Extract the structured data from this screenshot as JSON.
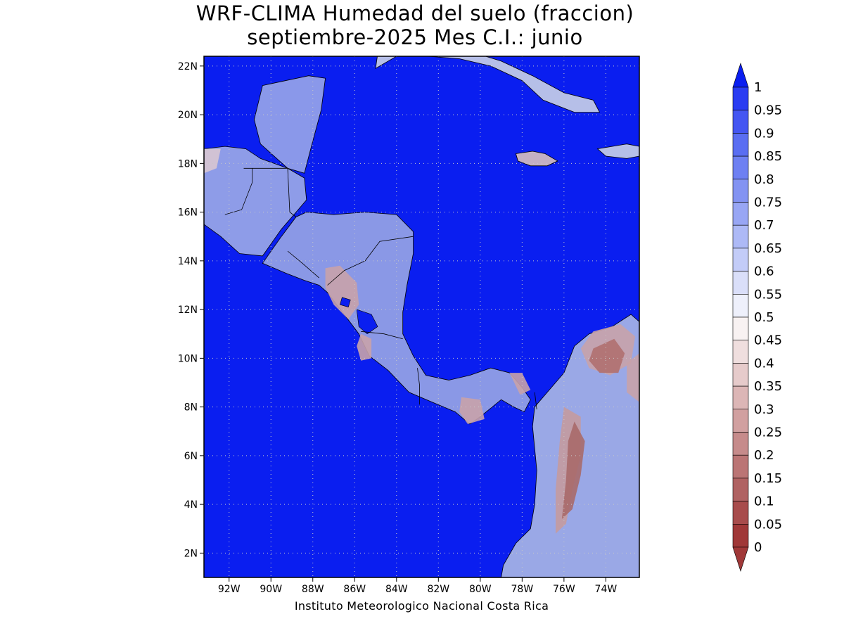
{
  "title": {
    "line1": "WRF-CLIMA Humedad del suelo (fraccion)",
    "line2": "septiembre-2025 Mes C.I.: junio"
  },
  "credit": "Instituto Meteorologico Nacional Costa Rica",
  "map": {
    "lat_range": [
      1,
      22.4
    ],
    "lon_range": [
      -93.2,
      -72.4
    ],
    "ocean_color": "#0a1ef0",
    "y_ticks": [
      {
        "value": 22,
        "label": "22N"
      },
      {
        "value": 20,
        "label": "20N"
      },
      {
        "value": 18,
        "label": "18N"
      },
      {
        "value": 16,
        "label": "16N"
      },
      {
        "value": 14,
        "label": "14N"
      },
      {
        "value": 12,
        "label": "12N"
      },
      {
        "value": 10,
        "label": "10N"
      },
      {
        "value": 8,
        "label": "8N"
      },
      {
        "value": 6,
        "label": "6N"
      },
      {
        "value": 4,
        "label": "4N"
      },
      {
        "value": 2,
        "label": "2N"
      }
    ],
    "x_ticks": [
      {
        "value": -92,
        "label": "92W"
      },
      {
        "value": -90,
        "label": "90W"
      },
      {
        "value": -88,
        "label": "88W"
      },
      {
        "value": -86,
        "label": "86W"
      },
      {
        "value": -84,
        "label": "84W"
      },
      {
        "value": -82,
        "label": "82W"
      },
      {
        "value": -80,
        "label": "80W"
      },
      {
        "value": -78,
        "label": "78W"
      },
      {
        "value": -76,
        "label": "76W"
      },
      {
        "value": -74,
        "label": "74W"
      }
    ],
    "regions": [
      {
        "name": "yucatan",
        "color": "#8a98ea",
        "points": [
          [
            -90.4,
            21.2
          ],
          [
            -88.2,
            21.6
          ],
          [
            -87.4,
            21.5
          ],
          [
            -87.6,
            20.2
          ],
          [
            -88.1,
            18.6
          ],
          [
            -88.4,
            17.6
          ],
          [
            -89.2,
            17.8
          ],
          [
            -90.5,
            18.8
          ],
          [
            -90.8,
            19.8
          ]
        ]
      },
      {
        "name": "mexico-sw",
        "color": "#8e9ce8",
        "points": [
          [
            -93.2,
            18.6
          ],
          [
            -92.2,
            18.7
          ],
          [
            -91.2,
            18.6
          ],
          [
            -90.5,
            18.2
          ],
          [
            -89.2,
            17.8
          ],
          [
            -88.4,
            17.4
          ],
          [
            -88.3,
            16.5
          ],
          [
            -88.9,
            15.9
          ],
          [
            -89.5,
            15.3
          ],
          [
            -90.4,
            14.2
          ],
          [
            -91.5,
            14.3
          ],
          [
            -92.4,
            15.0
          ],
          [
            -93.2,
            15.5
          ]
        ]
      },
      {
        "name": "central-america",
        "color": "#8a98e6",
        "points": [
          [
            -88.3,
            16.0
          ],
          [
            -87.0,
            15.9
          ],
          [
            -85.5,
            16.0
          ],
          [
            -84.0,
            15.9
          ],
          [
            -83.2,
            15.2
          ],
          [
            -83.2,
            14.3
          ],
          [
            -83.5,
            13.0
          ],
          [
            -83.7,
            11.9
          ],
          [
            -83.7,
            11.0
          ],
          [
            -83.2,
            10.1
          ],
          [
            -82.6,
            9.3
          ],
          [
            -81.5,
            9.1
          ],
          [
            -80.5,
            9.3
          ],
          [
            -79.5,
            9.6
          ],
          [
            -78.6,
            9.4
          ],
          [
            -78.0,
            8.8
          ],
          [
            -77.6,
            8.3
          ],
          [
            -77.9,
            7.8
          ],
          [
            -78.4,
            8.0
          ],
          [
            -79.0,
            8.3
          ],
          [
            -80.0,
            7.6
          ],
          [
            -80.5,
            7.3
          ],
          [
            -81.2,
            7.8
          ],
          [
            -82.3,
            8.2
          ],
          [
            -83.4,
            8.6
          ],
          [
            -84.4,
            9.5
          ],
          [
            -85.3,
            10.1
          ],
          [
            -85.8,
            11.0
          ],
          [
            -86.5,
            11.8
          ],
          [
            -87.3,
            12.7
          ],
          [
            -87.7,
            13.0
          ],
          [
            -88.4,
            13.2
          ],
          [
            -89.3,
            13.5
          ],
          [
            -90.4,
            13.9
          ],
          [
            -89.5,
            15.0
          ],
          [
            -88.8,
            15.8
          ]
        ]
      },
      {
        "name": "colombia",
        "color": "#9aa8e6",
        "points": [
          [
            -72.4,
            11.5
          ],
          [
            -72.8,
            11.8
          ],
          [
            -73.7,
            11.3
          ],
          [
            -74.8,
            11.0
          ],
          [
            -75.5,
            10.5
          ],
          [
            -76.0,
            9.4
          ],
          [
            -76.8,
            8.6
          ],
          [
            -77.4,
            8.0
          ],
          [
            -77.5,
            7.2
          ],
          [
            -77.3,
            5.4
          ],
          [
            -77.4,
            4.0
          ],
          [
            -77.6,
            3.0
          ],
          [
            -78.3,
            2.4
          ],
          [
            -78.9,
            1.5
          ],
          [
            -79.0,
            1.0
          ],
          [
            -72.4,
            1.0
          ]
        ]
      },
      {
        "name": "cuba",
        "color": "#b6bfe8",
        "points": [
          [
            -85.0,
            21.9
          ],
          [
            -84.0,
            22.4
          ],
          [
            -82.5,
            22.4
          ],
          [
            -81.0,
            22.3
          ],
          [
            -79.5,
            22.0
          ],
          [
            -78.0,
            21.4
          ],
          [
            -77.0,
            20.6
          ],
          [
            -75.5,
            20.1
          ],
          [
            -74.3,
            20.1
          ],
          [
            -74.6,
            20.6
          ],
          [
            -76.0,
            20.9
          ],
          [
            -77.5,
            21.6
          ],
          [
            -79.0,
            22.2
          ],
          [
            -80.5,
            22.6
          ],
          [
            -82.0,
            22.7
          ],
          [
            -83.5,
            22.8
          ],
          [
            -84.9,
            22.5
          ]
        ]
      },
      {
        "name": "jamaica",
        "color": "#c4b0c4",
        "points": [
          [
            -78.3,
            18.4
          ],
          [
            -77.5,
            18.5
          ],
          [
            -76.9,
            18.4
          ],
          [
            -76.3,
            18.1
          ],
          [
            -76.8,
            17.9
          ],
          [
            -77.6,
            17.9
          ],
          [
            -78.2,
            18.1
          ]
        ]
      },
      {
        "name": "hispaniola",
        "color": "#b6bfe8",
        "points": [
          [
            -74.4,
            18.6
          ],
          [
            -73.0,
            18.8
          ],
          [
            -72.4,
            18.7
          ],
          [
            -72.4,
            18.3
          ],
          [
            -73.0,
            18.2
          ],
          [
            -74.0,
            18.3
          ]
        ]
      }
    ],
    "patches": [
      {
        "color": "#c8a2aa",
        "points": [
          [
            -74.6,
            11.1
          ],
          [
            -73.3,
            11.4
          ],
          [
            -72.6,
            10.9
          ],
          [
            -72.8,
            9.8
          ],
          [
            -73.8,
            9.3
          ],
          [
            -74.8,
            9.6
          ],
          [
            -75.2,
            10.4
          ]
        ]
      },
      {
        "color": "#b07070",
        "points": [
          [
            -74.6,
            10.4
          ],
          [
            -73.6,
            10.8
          ],
          [
            -73.1,
            10.2
          ],
          [
            -73.4,
            9.4
          ],
          [
            -74.3,
            9.4
          ],
          [
            -74.8,
            9.9
          ]
        ]
      },
      {
        "color": "#c49a9e",
        "points": [
          [
            -76.0,
            8.0
          ],
          [
            -75.2,
            7.6
          ],
          [
            -75.2,
            6.0
          ],
          [
            -75.6,
            4.6
          ],
          [
            -75.9,
            3.2
          ],
          [
            -76.4,
            2.8
          ],
          [
            -76.4,
            4.6
          ],
          [
            -76.2,
            6.6
          ]
        ]
      },
      {
        "color": "#a86a6a",
        "points": [
          [
            -75.5,
            7.4
          ],
          [
            -75.0,
            6.6
          ],
          [
            -75.2,
            5.2
          ],
          [
            -75.6,
            3.8
          ],
          [
            -76.1,
            3.4
          ],
          [
            -75.9,
            5.0
          ],
          [
            -75.8,
            6.6
          ]
        ]
      },
      {
        "color": "#c8a2aa",
        "points": [
          [
            -72.4,
            10.2
          ],
          [
            -73.0,
            9.8
          ],
          [
            -73.0,
            8.6
          ],
          [
            -72.4,
            8.2
          ]
        ]
      },
      {
        "color": "#c8a2aa",
        "points": [
          [
            -87.4,
            13.7
          ],
          [
            -86.7,
            13.8
          ],
          [
            -85.9,
            13.1
          ],
          [
            -85.8,
            12.2
          ],
          [
            -86.3,
            11.6
          ],
          [
            -87.0,
            12.2
          ],
          [
            -87.4,
            12.9
          ]
        ]
      },
      {
        "color": "#c8a2aa",
        "points": [
          [
            -85.7,
            11.0
          ],
          [
            -85.2,
            10.8
          ],
          [
            -85.2,
            10.0
          ],
          [
            -85.7,
            9.9
          ],
          [
            -85.9,
            10.5
          ]
        ]
      },
      {
        "color": "#c8a2aa",
        "points": [
          [
            -80.9,
            8.4
          ],
          [
            -80.0,
            8.3
          ],
          [
            -79.8,
            7.5
          ],
          [
            -80.6,
            7.3
          ],
          [
            -81.0,
            7.8
          ]
        ]
      },
      {
        "color": "#d8c6d2",
        "points": [
          [
            -93.2,
            18.6
          ],
          [
            -92.4,
            18.6
          ],
          [
            -92.6,
            17.8
          ],
          [
            -93.2,
            17.6
          ]
        ]
      },
      {
        "color": "#c8a2aa",
        "points": [
          [
            -78.6,
            9.4
          ],
          [
            -78.0,
            9.4
          ],
          [
            -77.6,
            8.7
          ],
          [
            -78.1,
            8.5
          ]
        ]
      }
    ],
    "lakes": [
      {
        "color": "#0a1ef0",
        "points": [
          [
            -85.9,
            12.0
          ],
          [
            -85.2,
            11.8
          ],
          [
            -84.9,
            11.3
          ],
          [
            -85.4,
            11.0
          ],
          [
            -85.8,
            11.3
          ]
        ]
      },
      {
        "color": "#0a1ef0",
        "points": [
          [
            -86.6,
            12.5
          ],
          [
            -86.2,
            12.4
          ],
          [
            -86.3,
            12.1
          ],
          [
            -86.7,
            12.2
          ]
        ]
      }
    ],
    "borders": [
      {
        "points": [
          [
            -91.3,
            17.8
          ],
          [
            -90.9,
            17.8
          ],
          [
            -90.9,
            17.2
          ],
          [
            -91.4,
            16.1
          ],
          [
            -92.2,
            15.9
          ]
        ]
      },
      {
        "points": [
          [
            -90.9,
            17.8
          ],
          [
            -89.2,
            17.8
          ],
          [
            -89.1,
            16.0
          ],
          [
            -88.8,
            15.8
          ]
        ]
      },
      {
        "points": [
          [
            -89.2,
            14.4
          ],
          [
            -88.5,
            13.9
          ],
          [
            -87.7,
            13.3
          ]
        ]
      },
      {
        "points": [
          [
            -87.3,
            13.0
          ],
          [
            -86.5,
            13.6
          ],
          [
            -85.5,
            14.0
          ],
          [
            -84.8,
            14.8
          ],
          [
            -83.2,
            15.0
          ]
        ]
      },
      {
        "points": [
          [
            -85.7,
            11.1
          ],
          [
            -84.6,
            11.0
          ],
          [
            -83.7,
            10.8
          ]
        ]
      },
      {
        "points": [
          [
            -83.0,
            9.6
          ],
          [
            -82.9,
            8.9
          ],
          [
            -82.9,
            8.1
          ]
        ]
      },
      {
        "points": [
          [
            -77.4,
            8.6
          ],
          [
            -77.3,
            7.9
          ]
        ]
      }
    ],
    "colorbar": {
      "levels": [
        "1",
        "0.95",
        "0.9",
        "0.85",
        "0.8",
        "0.75",
        "0.7",
        "0.65",
        "0.6",
        "0.55",
        "0.5",
        "0.45",
        "0.4",
        "0.35",
        "0.3",
        "0.25",
        "0.2",
        "0.15",
        "0.1",
        "0.05",
        "0"
      ],
      "colors": [
        "#0a1ef0",
        "#2a3cf2",
        "#4456f2",
        "#5a6ef2",
        "#6e80f2",
        "#8393f2",
        "#98a6f4",
        "#adb9f6",
        "#c3ccf8",
        "#dadff9",
        "#eef0fb",
        "#f8f2f2",
        "#efdede",
        "#e6cbcb",
        "#dcb6b6",
        "#d1a0a0",
        "#c68b8b",
        "#bb7575",
        "#b06262",
        "#a84c4c",
        "#a03838"
      ]
    }
  }
}
